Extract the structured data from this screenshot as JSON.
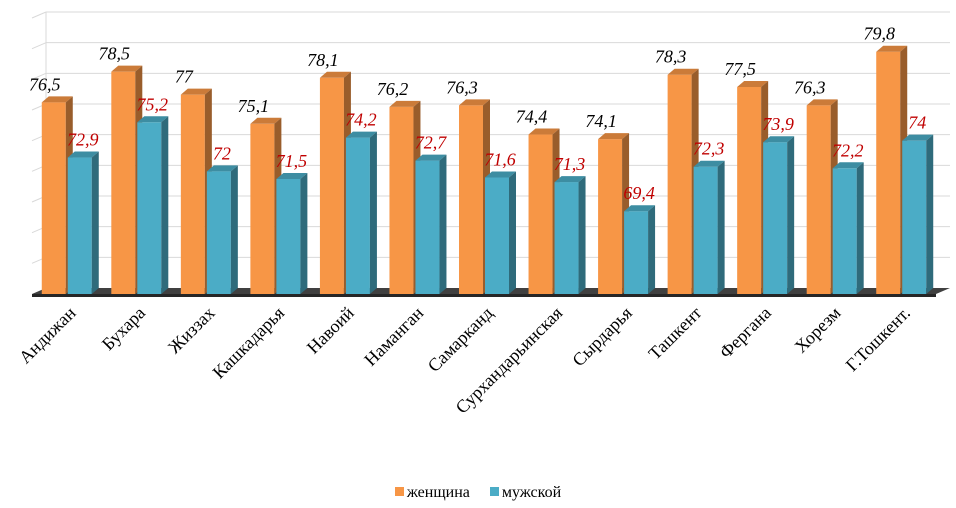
{
  "chart_data": {
    "type": "bar",
    "categories": [
      "Андижан",
      "Бухара",
      "Жиззах",
      "Кашкадарья",
      "Навоий",
      "Наманган",
      "Самарканд",
      "Сурхандарьинская",
      "Сырдарья",
      "Ташкент",
      "Фергана",
      "Хорезм",
      "Г.Тошкент."
    ],
    "series": [
      {
        "name": "женщина",
        "values": [
          76.5,
          78.5,
          77,
          75.1,
          78.1,
          76.2,
          76.3,
          74.4,
          74.1,
          78.3,
          77.5,
          76.3,
          79.8
        ],
        "labels": [
          "76,5",
          "78,5",
          "77",
          "75,1",
          "78,1",
          "76,2",
          "76,3",
          "74,4",
          "74,1",
          "78,3",
          "77,5",
          "76,3",
          "79,8"
        ],
        "color": "#f79646",
        "label_color": "#000000"
      },
      {
        "name": "мужской",
        "values": [
          72.9,
          75.2,
          72,
          71.5,
          74.2,
          72.7,
          71.6,
          71.3,
          69.4,
          72.3,
          73.9,
          72.2,
          74
        ],
        "labels": [
          "72,9",
          "75,2",
          "72",
          "71,5",
          "74,2",
          "72,7",
          "71,6",
          "71,3",
          "69,4",
          "72,3",
          "73,9",
          "72,2",
          "74"
        ],
        "color": "#4bacc6",
        "label_color": "#c00000"
      }
    ],
    "ylim": [
      64,
      82
    ],
    "grid": true,
    "legend_position": "bottom",
    "style": "3d-clustered-column"
  }
}
